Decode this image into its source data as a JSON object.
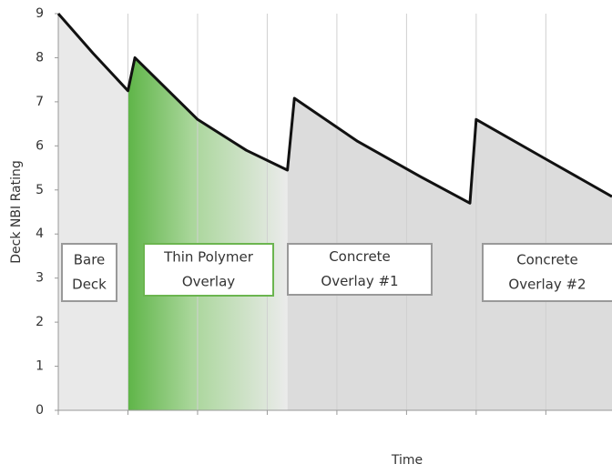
{
  "chart_data": {
    "type": "line",
    "ylabel": "Deck NBI Rating",
    "xlabel": "Time",
    "x": [
      0,
      0.5,
      1,
      1.1,
      2,
      2.7,
      3.29,
      3.39,
      4.3,
      5.2,
      5.91,
      6,
      7,
      7.95
    ],
    "values": [
      9,
      8.1,
      7.25,
      8,
      6.6,
      5.9,
      5.45,
      7.08,
      6.1,
      5.3,
      4.7,
      6.6,
      5.7,
      4.85
    ],
    "color": "#111111",
    "xlim": [
      0,
      7.95
    ],
    "xticks": [
      0,
      1,
      2,
      3,
      4,
      5,
      6,
      7
    ],
    "ylim": [
      0,
      9
    ],
    "yticks": [
      0,
      1,
      2,
      3,
      4,
      5,
      6,
      7,
      8,
      9
    ],
    "grid": true,
    "annotations": [
      {
        "lines": [
          "Bare",
          "Deck"
        ]
      },
      {
        "lines": [
          "Thin Polymer",
          "Overlay"
        ]
      },
      {
        "lines": [
          "Concrete",
          "Overlay #1"
        ]
      },
      {
        "lines": [
          "Concrete",
          "Overlay #2"
        ]
      }
    ]
  }
}
